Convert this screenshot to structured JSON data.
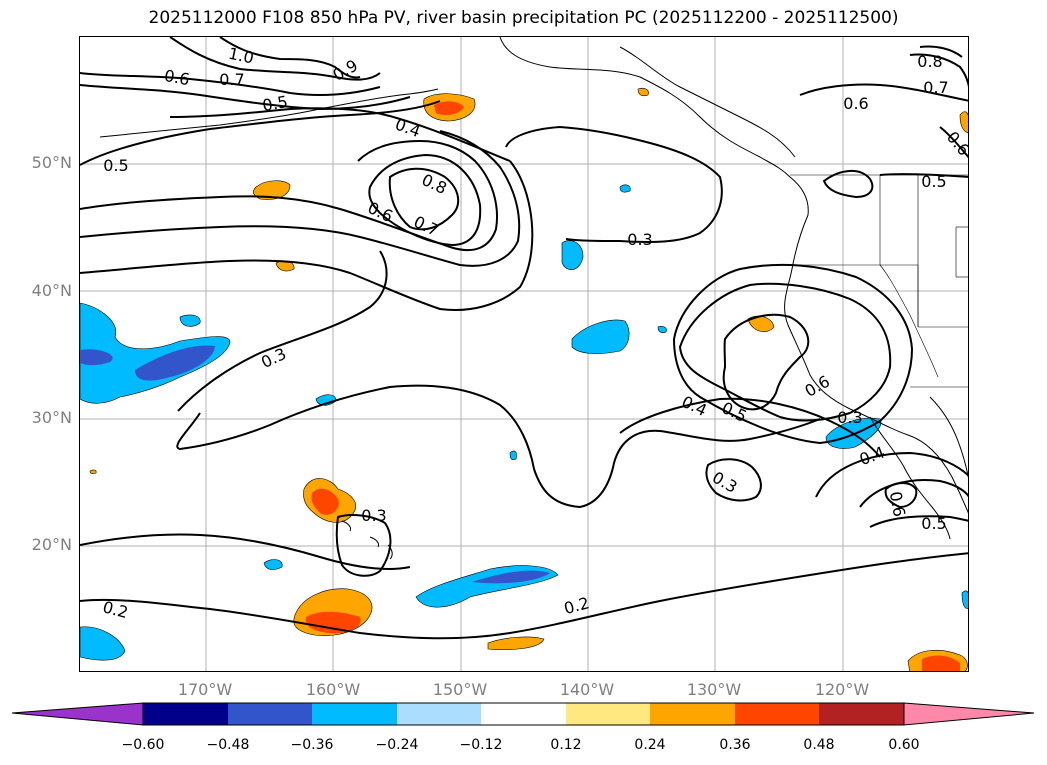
{
  "title": "2025112000 F108 850 hPa PV, river basin precipitation PC (2025112200 - 2025112500)",
  "map": {
    "lat_labels": [
      "50°N",
      "40°N",
      "30°N",
      "20°N"
    ],
    "lon_labels": [
      "170°W",
      "160°W",
      "150°W",
      "140°W",
      "130°W",
      "120°W"
    ],
    "contour_labels": [
      "1.0",
      "0.9",
      "0.6",
      "0.7",
      "0.5",
      "0.4",
      "0.5",
      "0.8",
      "0.6",
      "0.7",
      "0.3",
      "0.3",
      "0.6",
      "0.8",
      "0.7",
      "0.6",
      "0.5",
      "0.4",
      "0.5",
      "0.6",
      "0.3",
      "0.4",
      "0.3",
      "0.3",
      "0.5",
      "0.6",
      "0.2",
      "0.2"
    ],
    "contour_line_color": "#000000",
    "coastline_color": "#000000",
    "grid_color": "#b0b0b0"
  },
  "colorbar": {
    "ticks": [
      "−0.60",
      "−0.48",
      "−0.36",
      "−0.24",
      "−0.12",
      "0.12",
      "0.24",
      "0.36",
      "0.48",
      "0.60"
    ],
    "colors": [
      "#9933cc",
      "#00008b",
      "#3355cc",
      "#00bbff",
      "#aaddff",
      "#ffffff",
      "#ffe880",
      "#ffa500",
      "#ff4500",
      "#b22222",
      "#ff88aa"
    ]
  }
}
